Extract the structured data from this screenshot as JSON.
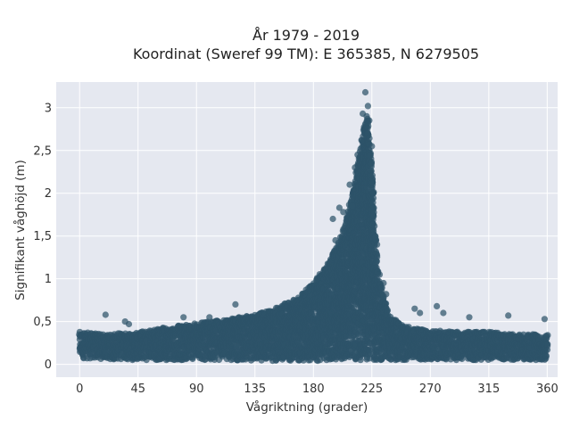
{
  "chart_data": {
    "type": "scatter",
    "title_lines": [
      "År 1979 - 2019",
      "Koordinat (Sweref 99 TM): E 365385, N 6279505"
    ],
    "xlabel": "Vågriktning (grader)",
    "ylabel": "Signifikant våghöjd (m)",
    "xlim": [
      -18,
      368
    ],
    "ylim": [
      -0.15,
      3.3
    ],
    "xticks": [
      0,
      45,
      90,
      135,
      180,
      225,
      270,
      315,
      360
    ],
    "xtick_labels": [
      "0",
      "45",
      "90",
      "135",
      "180",
      "225",
      "270",
      "315",
      "360"
    ],
    "yticks": [
      0,
      0.5,
      1,
      1.5,
      2,
      2.5,
      3
    ],
    "ytick_labels": [
      "0",
      "0,5",
      "1",
      "1,5",
      "2",
      "2,5",
      "3"
    ],
    "grid": true,
    "legend": "none",
    "marker_color": "#2e5369",
    "plot_background": "#e5e8f0",
    "envelope": {
      "x": [
        0,
        20,
        45,
        60,
        90,
        110,
        135,
        150,
        170,
        180,
        190,
        200,
        205,
        210,
        215,
        218,
        220,
        222,
        224,
        226,
        228,
        230,
        235,
        240,
        250,
        270,
        290,
        315,
        340,
        360
      ],
      "y_max": [
        0.38,
        0.35,
        0.38,
        0.42,
        0.48,
        0.52,
        0.58,
        0.65,
        0.8,
        0.95,
        1.15,
        1.45,
        1.7,
        2.0,
        2.4,
        2.7,
        2.85,
        2.9,
        2.6,
        2.2,
        1.5,
        1.05,
        0.75,
        0.55,
        0.45,
        0.4,
        0.38,
        0.38,
        0.35,
        0.35
      ],
      "y_min": [
        0.07,
        0.06,
        0.05,
        0.05,
        0.05,
        0.05,
        0.04,
        0.04,
        0.04,
        0.04,
        0.04,
        0.04,
        0.04,
        0.04,
        0.05,
        0.05,
        0.05,
        0.05,
        0.05,
        0.05,
        0.05,
        0.05,
        0.05,
        0.05,
        0.05,
        0.05,
        0.05,
        0.05,
        0.05,
        0.05
      ]
    },
    "notable_points": [
      {
        "x": 220,
        "y": 3.18
      },
      {
        "x": 222,
        "y": 3.02
      },
      {
        "x": 218,
        "y": 2.93
      },
      {
        "x": 221,
        "y": 2.9
      },
      {
        "x": 223,
        "y": 2.85
      },
      {
        "x": 217,
        "y": 2.62
      },
      {
        "x": 225,
        "y": 2.55
      },
      {
        "x": 214,
        "y": 2.45
      },
      {
        "x": 212,
        "y": 2.3
      },
      {
        "x": 208,
        "y": 2.1
      },
      {
        "x": 210,
        "y": 1.85
      },
      {
        "x": 200,
        "y": 1.83
      },
      {
        "x": 203,
        "y": 1.78
      },
      {
        "x": 195,
        "y": 1.7
      },
      {
        "x": 197,
        "y": 1.45
      },
      {
        "x": 226,
        "y": 2.0
      },
      {
        "x": 229,
        "y": 1.4
      },
      {
        "x": 231,
        "y": 1.05
      },
      {
        "x": 234,
        "y": 0.95
      },
      {
        "x": 236,
        "y": 0.82
      },
      {
        "x": 20,
        "y": 0.58
      },
      {
        "x": 35,
        "y": 0.5
      },
      {
        "x": 38,
        "y": 0.47
      },
      {
        "x": 80,
        "y": 0.55
      },
      {
        "x": 100,
        "y": 0.55
      },
      {
        "x": 120,
        "y": 0.7
      },
      {
        "x": 258,
        "y": 0.65
      },
      {
        "x": 262,
        "y": 0.6
      },
      {
        "x": 275,
        "y": 0.68
      },
      {
        "x": 280,
        "y": 0.6
      },
      {
        "x": 300,
        "y": 0.55
      },
      {
        "x": 330,
        "y": 0.57
      },
      {
        "x": 358,
        "y": 0.53
      }
    ]
  }
}
